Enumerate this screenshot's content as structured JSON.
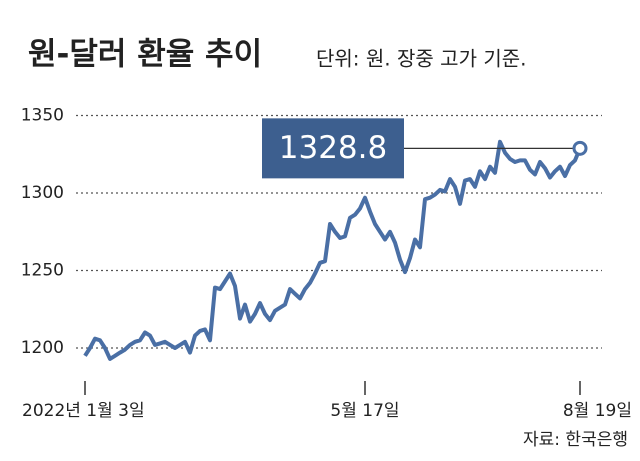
{
  "chart_data": {
    "type": "line",
    "title": "원-달러 환율 추이",
    "subtitle": "단위: 원. 장중 고가 기준.",
    "source": "자료: 한국은행",
    "annotation": "1328.8",
    "color": "#4a6fa5",
    "grid": true,
    "ylim": [
      1180,
      1360
    ],
    "yticks": [
      1200,
      1250,
      1300,
      1350
    ],
    "categories": [
      "2022년 1월 3일",
      null,
      null,
      null,
      null,
      null,
      null,
      null,
      null,
      null,
      null,
      null,
      null,
      null,
      null,
      null,
      null,
      null,
      null,
      null,
      null,
      null,
      null,
      null,
      null,
      null,
      null,
      null,
      null,
      null,
      null,
      null,
      null,
      null,
      null,
      null,
      null,
      null,
      null,
      null,
      null,
      null,
      null,
      null,
      null,
      null,
      null,
      null,
      null,
      null,
      null,
      null,
      null,
      null,
      null,
      null,
      "5월 17일",
      null,
      null,
      null,
      null,
      null,
      null,
      null,
      null,
      null,
      null,
      null,
      null,
      null,
      null,
      null,
      null,
      null,
      null,
      null,
      null,
      null,
      null,
      null,
      null,
      null,
      null,
      null,
      null,
      null,
      null,
      null,
      null,
      null,
      null,
      null,
      null,
      null,
      null,
      null,
      null,
      null,
      null,
      "8월 19일"
    ],
    "values": [
      1195,
      1200,
      1206,
      1205,
      1200,
      1193,
      1195,
      1197,
      1199,
      1202,
      1204,
      1205,
      1210,
      1208,
      1202,
      1203,
      1204,
      1202,
      1200,
      1202,
      1204,
      1197,
      1208,
      1211,
      1212,
      1205,
      1239,
      1238,
      1243,
      1248,
      1240,
      1219,
      1228,
      1217,
      1222,
      1229,
      1222,
      1218,
      1224,
      1226,
      1228,
      1238,
      1235,
      1232,
      1238,
      1242,
      1248,
      1255,
      1256,
      1280,
      1275,
      1271,
      1272,
      1284,
      1286,
      1290,
      1297,
      1288,
      1280,
      1275,
      1270,
      1275,
      1268,
      1257,
      1249,
      1258,
      1270,
      1265,
      1296,
      1297,
      1299,
      1302,
      1301,
      1309,
      1304,
      1293,
      1308,
      1309,
      1304,
      1314,
      1309,
      1317,
      1313,
      1333,
      1326,
      1322,
      1320,
      1321,
      1321,
      1315,
      1312,
      1320,
      1316,
      1310,
      1314,
      1317,
      1311,
      1318,
      1321,
      1328.8
    ]
  }
}
